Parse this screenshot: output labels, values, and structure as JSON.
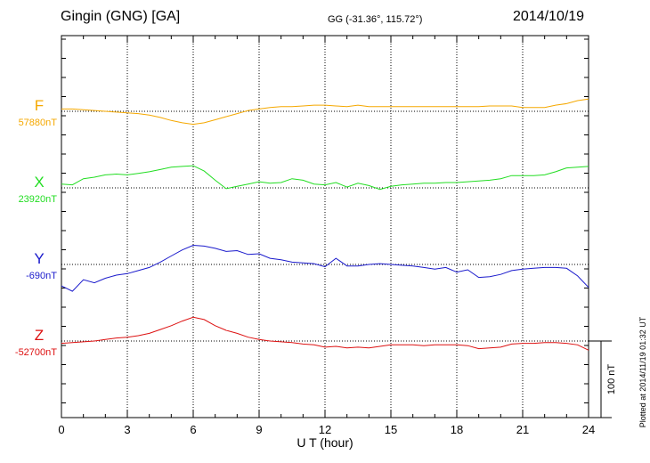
{
  "header": {
    "station": "Gingin (GNG)  [GA]",
    "coords": "GG (-31.36°, 115.72°)",
    "date": "2014/10/19"
  },
  "footer": {
    "plotted": "Plotted at 2014/11/19 01:32 UT"
  },
  "chart_data": {
    "type": "line",
    "xlabel": "U T (hour)",
    "xlim": [
      0,
      24
    ],
    "xticks": [
      "0",
      "3",
      "6",
      "9",
      "12",
      "15",
      "18",
      "21",
      "24"
    ],
    "scale_bar_label": "100 nT",
    "scale_bar_nT": 100,
    "grid": true,
    "series": [
      {
        "name": "F",
        "baseline_label": "57880nT",
        "color": "#f5a800",
        "x": [
          0,
          0.5,
          1,
          1.5,
          2,
          2.5,
          3,
          3.5,
          4,
          4.5,
          5,
          5.5,
          6,
          6.5,
          7,
          7.5,
          8,
          8.5,
          9,
          9.5,
          10,
          10.5,
          11,
          11.5,
          12,
          12.5,
          13,
          13.5,
          14,
          14.5,
          15,
          15.5,
          16,
          16.5,
          17,
          17.5,
          18,
          18.5,
          19,
          19.5,
          20,
          20.5,
          21,
          21.5,
          22,
          22.5,
          23,
          23.5,
          24
        ],
        "y": [
          3,
          3,
          2,
          1,
          0,
          -1,
          -2,
          -3,
          -5,
          -8,
          -12,
          -15,
          -17,
          -15,
          -11,
          -7,
          -3,
          1,
          3,
          5,
          6,
          6,
          7,
          8,
          8,
          7,
          6,
          8,
          6,
          6,
          6,
          6,
          6,
          6,
          6,
          6,
          6,
          6,
          6,
          7,
          7,
          7,
          5,
          5,
          5,
          8,
          10,
          14,
          16
        ]
      },
      {
        "name": "X",
        "baseline_label": "23920nT",
        "color": "#22dd22",
        "x": [
          0,
          0.5,
          1,
          1.5,
          2,
          2.5,
          3,
          3.5,
          4,
          4.5,
          5,
          5.5,
          6,
          6.5,
          7,
          7.5,
          8,
          8.5,
          9,
          9.5,
          10,
          10.5,
          11,
          11.5,
          12,
          12.5,
          13,
          13.5,
          14,
          14.5,
          15,
          15.5,
          16,
          16.5,
          17,
          17.5,
          18,
          18.5,
          19,
          19.5,
          20,
          20.5,
          21,
          21.5,
          22,
          22.5,
          23,
          23.5,
          24
        ],
        "y": [
          5,
          4,
          12,
          14,
          17,
          18,
          17,
          19,
          21,
          24,
          27,
          28,
          29,
          22,
          10,
          -1,
          2,
          5,
          8,
          6,
          7,
          12,
          10,
          5,
          4,
          7,
          1,
          6,
          3,
          -2,
          2,
          4,
          5,
          6,
          6,
          7,
          7,
          8,
          9,
          10,
          12,
          16,
          16,
          16,
          17,
          21,
          26,
          27,
          28
        ]
      },
      {
        "name": "Y",
        "baseline_label": "-690nT",
        "color": "#1a1acc",
        "x": [
          0,
          0.5,
          1,
          1.5,
          2,
          2.5,
          3,
          3.5,
          4,
          4.5,
          5,
          5.5,
          6,
          6.5,
          7,
          7.5,
          8,
          8.5,
          9,
          9.5,
          10,
          10.5,
          11,
          11.5,
          12,
          12.5,
          13,
          13.5,
          14,
          14.5,
          15,
          15.5,
          16,
          16.5,
          17,
          17.5,
          18,
          18.5,
          19,
          19.5,
          20,
          20.5,
          21,
          21.5,
          22,
          22.5,
          23,
          23.5,
          24
        ],
        "y": [
          -28,
          -35,
          -20,
          -24,
          -18,
          -14,
          -12,
          -8,
          -4,
          3,
          11,
          19,
          25,
          24,
          21,
          17,
          18,
          13,
          14,
          8,
          6,
          3,
          2,
          1,
          -3,
          8,
          -2,
          -2,
          0,
          1,
          0,
          -1,
          -2,
          -4,
          -6,
          -4,
          -10,
          -7,
          -17,
          -16,
          -13,
          -8,
          -6,
          -5,
          -4,
          -4,
          -5,
          -15,
          -30
        ]
      },
      {
        "name": "Z",
        "baseline_label": "-52700nT",
        "color": "#dd1111",
        "x": [
          0,
          0.5,
          1,
          1.5,
          2,
          2.5,
          3,
          3.5,
          4,
          4.5,
          5,
          5.5,
          6,
          6.5,
          7,
          7.5,
          8,
          8.5,
          9,
          9.5,
          10,
          10.5,
          11,
          11.5,
          12,
          12.5,
          13,
          13.5,
          14,
          14.5,
          15,
          15.5,
          16,
          16.5,
          17,
          17.5,
          18,
          18.5,
          19,
          19.5,
          20,
          20.5,
          21,
          21.5,
          22,
          22.5,
          23,
          23.5,
          24
        ],
        "y": [
          -3,
          -2,
          -1,
          0,
          2,
          4,
          5,
          7,
          10,
          15,
          20,
          26,
          31,
          28,
          20,
          14,
          10,
          5,
          2,
          0,
          -1,
          -2,
          -4,
          -5,
          -8,
          -7,
          -9,
          -8,
          -9,
          -7,
          -5,
          -5,
          -5,
          -6,
          -5,
          -5,
          -5,
          -6,
          -10,
          -9,
          -8,
          -4,
          -3,
          -3,
          -2,
          -2,
          -3,
          -5,
          -12
        ]
      }
    ]
  }
}
